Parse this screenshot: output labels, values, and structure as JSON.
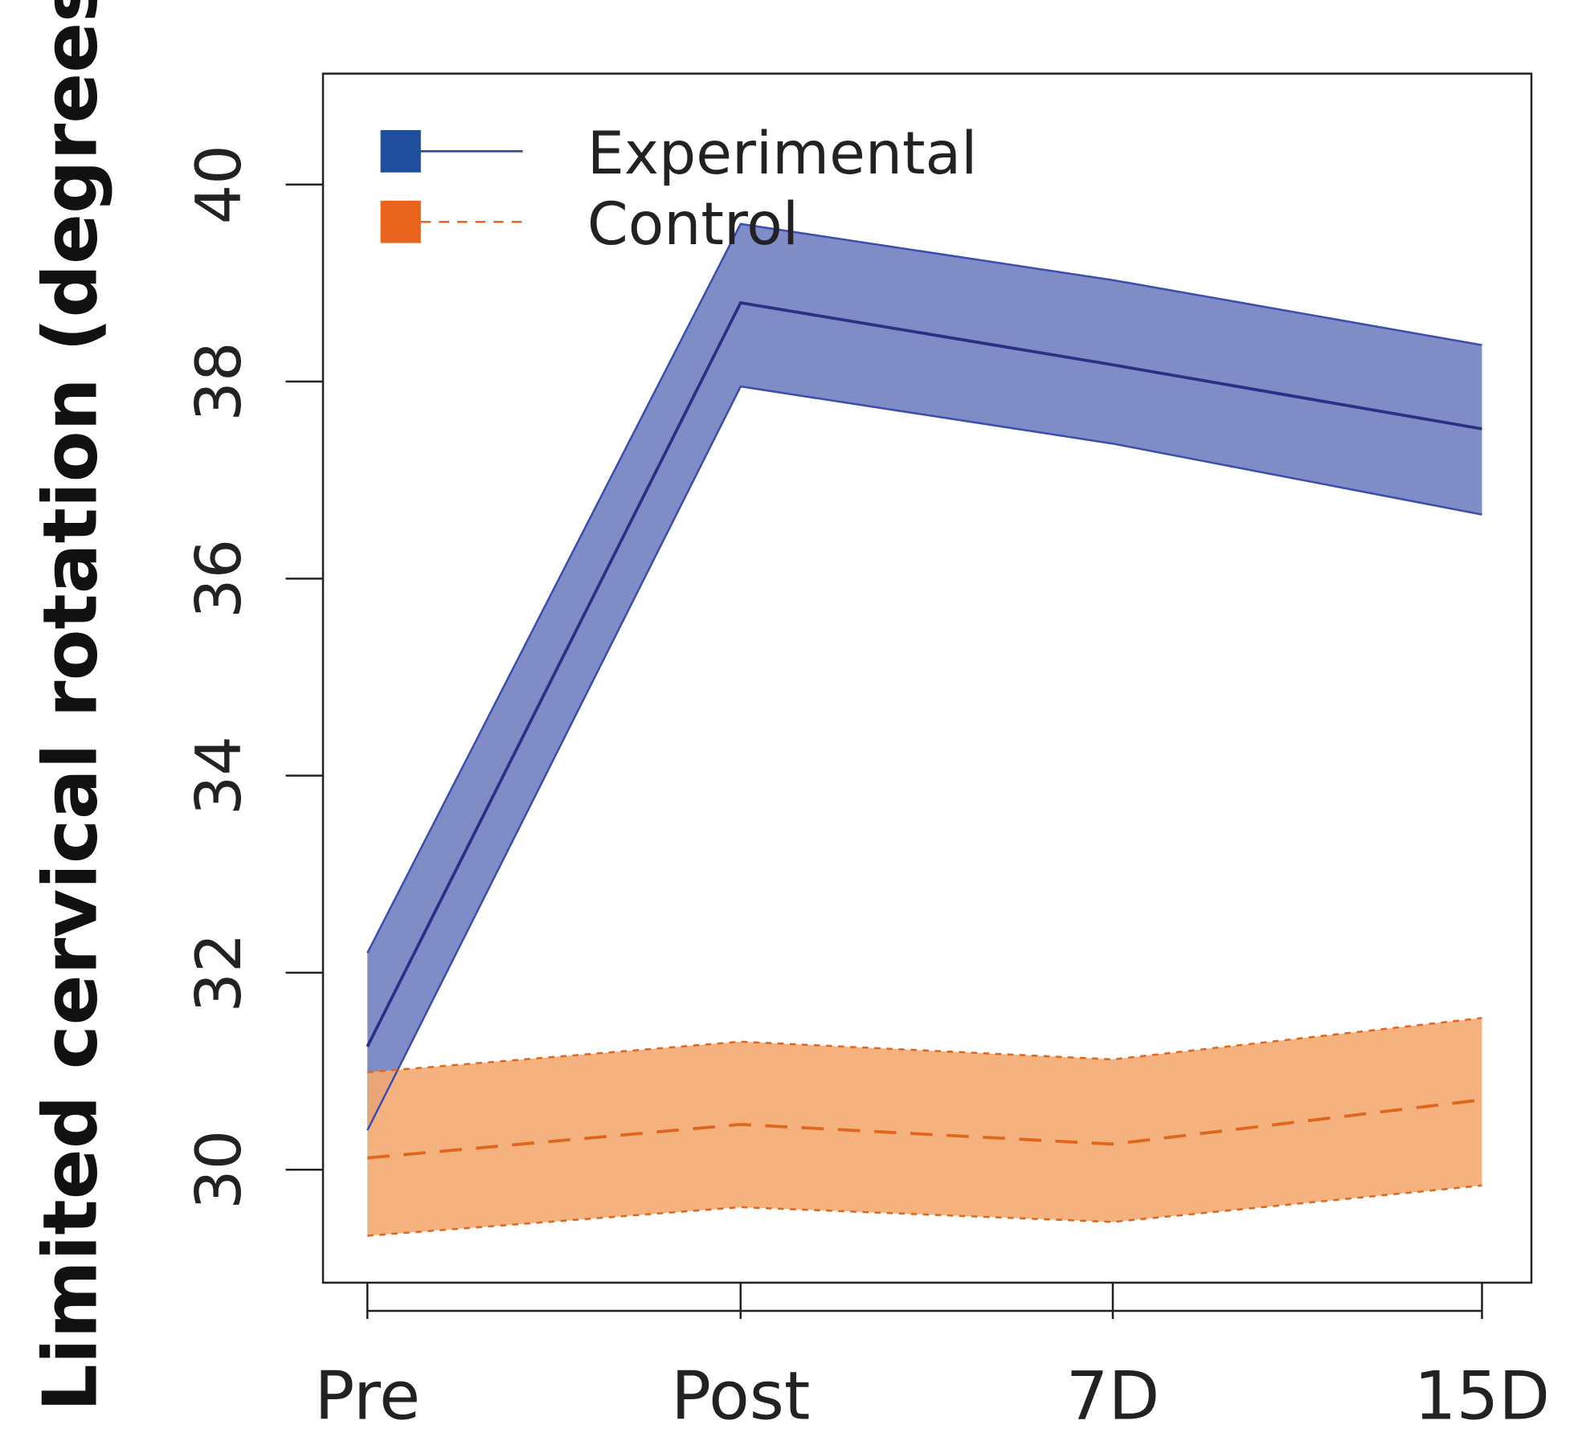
{
  "chart_data": {
    "type": "line",
    "title": "",
    "xlabel": "",
    "ylabel": "Limited cervical rotation (degrees)",
    "categories": [
      "Pre",
      "Post",
      "7D",
      "15D"
    ],
    "ylim": [
      28.85,
      41.15
    ],
    "yticks": [
      30,
      32,
      34,
      36,
      38,
      40
    ],
    "ytick_labels": [
      "30",
      "32",
      "34",
      "36",
      "38",
      "40"
    ],
    "grid": false,
    "legend_position": "top-left",
    "series": [
      {
        "name": "Experimental",
        "style": "solid",
        "color": "#2b2f85",
        "band_color": "#7f8cc6",
        "legend_color": "#1f4e9c",
        "values": [
          31.25,
          38.8,
          38.17,
          37.52
        ],
        "upper": [
          32.2,
          39.6,
          39.03,
          38.37
        ],
        "lower": [
          30.4,
          37.95,
          37.37,
          36.65
        ]
      },
      {
        "name": "Control",
        "style": "dashed",
        "color": "#e0661e",
        "band_color": "#f4a870",
        "legend_color": "#e8641c",
        "values": [
          30.12,
          30.46,
          30.26,
          30.71
        ],
        "upper": [
          30.99,
          31.3,
          31.12,
          31.54
        ],
        "lower": [
          29.33,
          29.62,
          29.47,
          29.84
        ]
      }
    ]
  }
}
